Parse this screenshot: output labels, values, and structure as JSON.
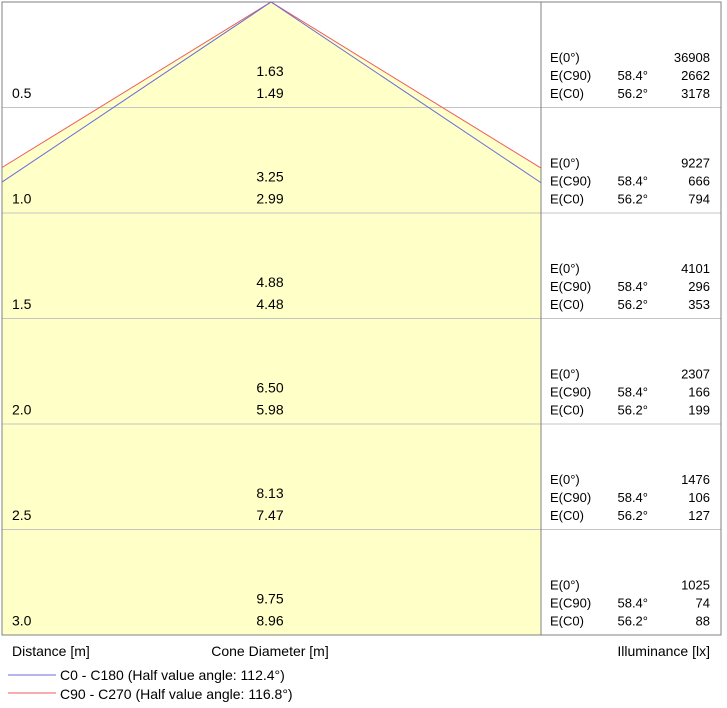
{
  "chart_data": {
    "type": "cone_diagram",
    "levels": [
      {
        "distance": "0.5",
        "d_c90": "1.63",
        "d_c0": "1.49",
        "e0_label": "E(0°)",
        "e0_value": "36908",
        "ec90_label": "E(C90)",
        "ec90_angle": "58.4°",
        "ec90_value": "2662",
        "ec0_label": "E(C0)",
        "ec0_angle": "56.2°",
        "ec0_value": "3178"
      },
      {
        "distance": "1.0",
        "d_c90": "3.25",
        "d_c0": "2.99",
        "e0_label": "E(0°)",
        "e0_value": "9227",
        "ec90_label": "E(C90)",
        "ec90_angle": "58.4°",
        "ec90_value": "666",
        "ec0_label": "E(C0)",
        "ec0_angle": "56.2°",
        "ec0_value": "794"
      },
      {
        "distance": "1.5",
        "d_c90": "4.88",
        "d_c0": "4.48",
        "e0_label": "E(0°)",
        "e0_value": "4101",
        "ec90_label": "E(C90)",
        "ec90_angle": "58.4°",
        "ec90_value": "296",
        "ec0_label": "E(C0)",
        "ec0_angle": "56.2°",
        "ec0_value": "353"
      },
      {
        "distance": "2.0",
        "d_c90": "6.50",
        "d_c0": "5.98",
        "e0_label": "E(0°)",
        "e0_value": "2307",
        "ec90_label": "E(C90)",
        "ec90_angle": "58.4°",
        "ec90_value": "166",
        "ec0_label": "E(C0)",
        "ec0_angle": "56.2°",
        "ec0_value": "199"
      },
      {
        "distance": "2.5",
        "d_c90": "8.13",
        "d_c0": "7.47",
        "e0_label": "E(0°)",
        "e0_value": "1476",
        "ec90_label": "E(C90)",
        "ec90_angle": "58.4°",
        "ec90_value": "106",
        "ec0_label": "E(C0)",
        "ec0_angle": "56.2°",
        "ec0_value": "127"
      },
      {
        "distance": "3.0",
        "d_c90": "9.75",
        "d_c0": "8.96",
        "e0_label": "E(0°)",
        "e0_value": "1025",
        "ec90_label": "E(C90)",
        "ec90_angle": "58.4°",
        "ec90_value": "74",
        "ec0_label": "E(C0)",
        "ec0_angle": "56.2°",
        "ec0_value": "88"
      }
    ],
    "half_angles": {
      "c0_c180": 112.4,
      "c90_c270": 116.8
    },
    "axis_labels": {
      "distance": "Distance [m]",
      "cone_diameter": "Cone Diameter [m]",
      "illuminance": "Illuminance [lx]"
    },
    "legend": [
      {
        "label": "C0 - C180 (Half value angle: 112.4°)",
        "color": "#6b6bdc"
      },
      {
        "label": "C90 - C270 (Half value angle: 116.8°)",
        "color": "#ee5a5a"
      }
    ],
    "colors": {
      "fill": "#ffffc8",
      "grid": "#c4c4c4",
      "frame": "#808080",
      "c0": "#6b6bdc",
      "c90": "#ee5a5a"
    }
  }
}
